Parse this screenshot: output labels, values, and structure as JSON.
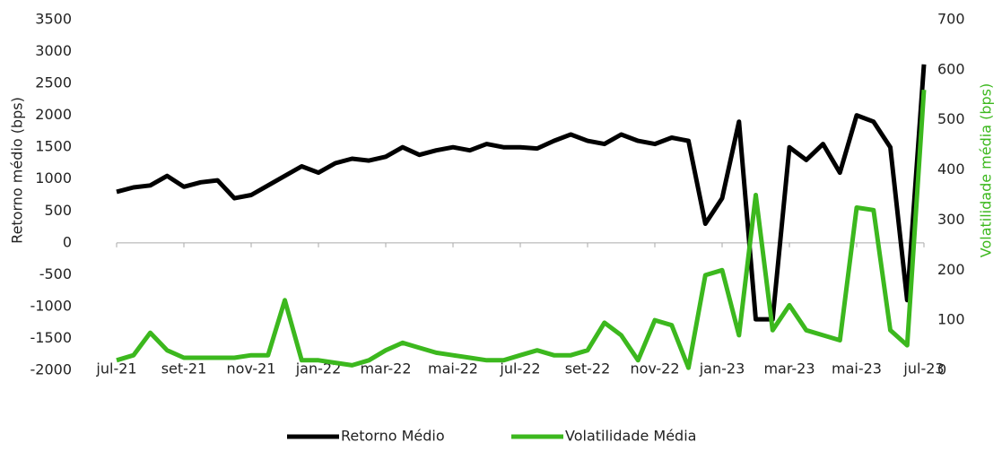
{
  "chart_data": {
    "type": "line",
    "categories": [
      "jul-21",
      null,
      null,
      null,
      "set-21",
      null,
      null,
      null,
      "nov-21",
      null,
      null,
      null,
      "jan-22",
      null,
      null,
      null,
      "mar-22",
      null,
      null,
      null,
      "mai-22",
      null,
      null,
      null,
      "jul-22",
      null,
      null,
      null,
      "set-22",
      null,
      null,
      null,
      "nov-22",
      null,
      null,
      null,
      "jan-23",
      null,
      null,
      null,
      "mar-23",
      null,
      null,
      null,
      "mai-23",
      null,
      null,
      null,
      "jul-23"
    ],
    "series": [
      {
        "name": "Retorno Médio",
        "color": "#000000",
        "values": [
          800,
          870,
          900,
          1050,
          880,
          950,
          980,
          700,
          750,
          900,
          1050,
          1200,
          1100,
          1250,
          1320,
          1290,
          1350,
          1500,
          1380,
          1450,
          1500,
          1450,
          1550,
          1500,
          1500,
          1480,
          1600,
          1700,
          1600,
          1550,
          1700,
          1600,
          1550,
          1650,
          1600,
          300,
          700,
          1900,
          -1200,
          -1200,
          1500,
          1300,
          1550,
          1100,
          2000,
          1900,
          1500,
          -900,
          2800
        ]
      },
      {
        "name": "Volatilidade Média",
        "color": "#3cb81e",
        "axis": "y2",
        "values": [
          20,
          30,
          75,
          40,
          25,
          25,
          25,
          25,
          30,
          30,
          140,
          20,
          20,
          15,
          10,
          20,
          40,
          55,
          45,
          35,
          30,
          25,
          20,
          20,
          30,
          40,
          30,
          30,
          40,
          95,
          70,
          20,
          100,
          90,
          5,
          190,
          200,
          70,
          350,
          80,
          130,
          80,
          70,
          60,
          325,
          320,
          80,
          50,
          560
        ]
      }
    ],
    "ylabel": "Retorno médio (bps)",
    "y2label": "Volatilidade média (bps)",
    "ylim": [
      -2000,
      3500
    ],
    "yticks": [
      -2000,
      -1500,
      -1000,
      -500,
      0,
      500,
      1000,
      1500,
      2000,
      2500,
      3000,
      3500
    ],
    "y2lim": [
      0,
      700
    ],
    "y2ticks": [
      0,
      100,
      200,
      300,
      400,
      500,
      600,
      700
    ],
    "legend": "bottom"
  }
}
